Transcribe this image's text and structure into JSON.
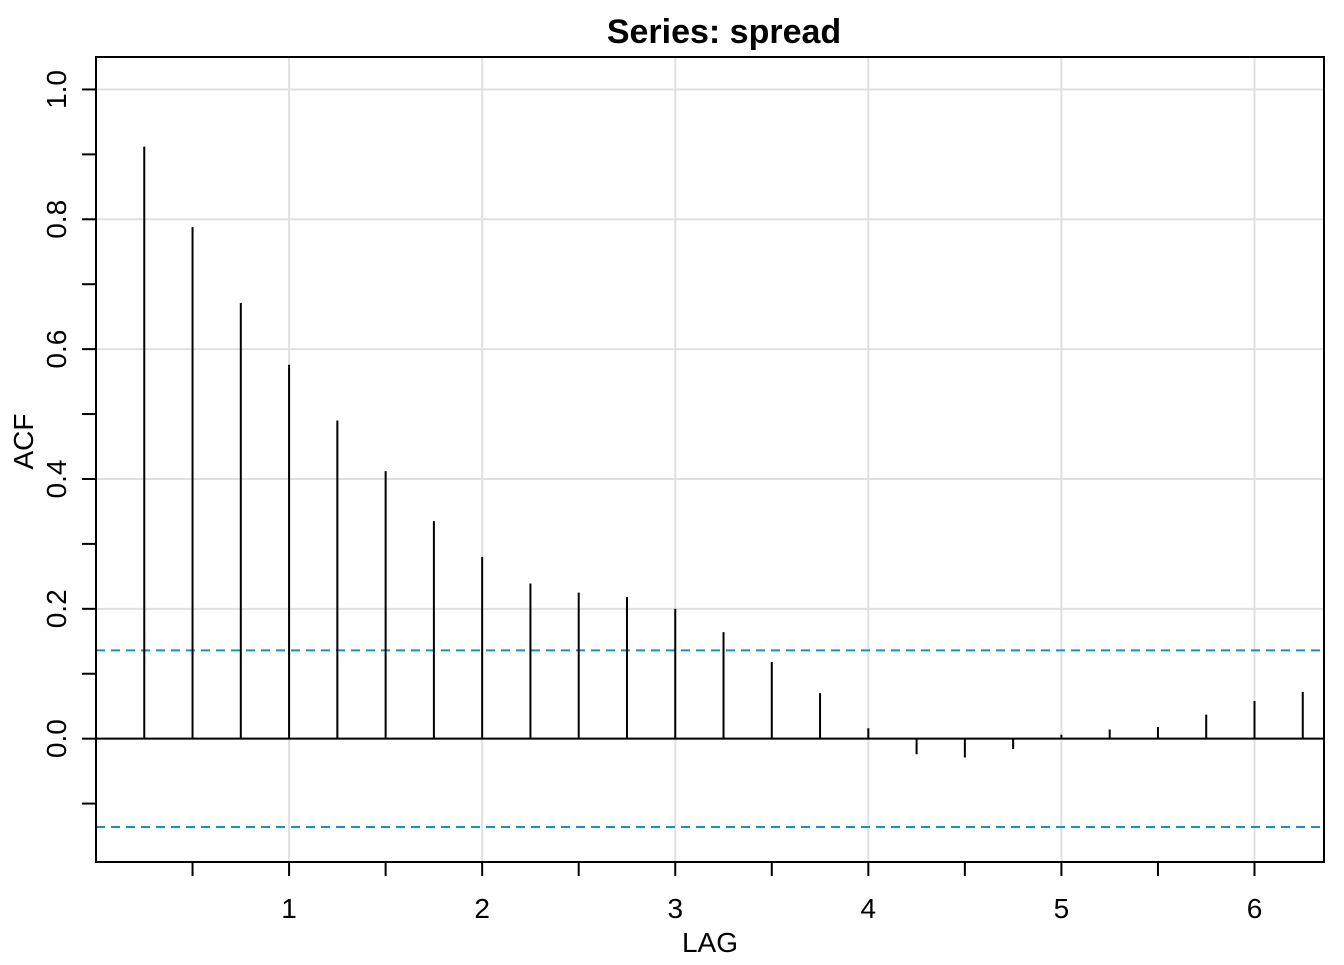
{
  "chart_data": {
    "type": "bar",
    "subtype": "acf-stem",
    "title": "Series:  spread",
    "xlabel": "LAG",
    "ylabel": "ACF",
    "xlim": [
      0.0,
      6.36
    ],
    "ylim": [
      -0.19,
      1.05
    ],
    "x_ticks": [
      1,
      2,
      3,
      4,
      5,
      6
    ],
    "x_tick_labels": [
      "1",
      "2",
      "3",
      "4",
      "5",
      "6"
    ],
    "x_minor_ticks": [
      0.5,
      1.5,
      2.5,
      3.5,
      4.5,
      5.5
    ],
    "y_ticks": [
      0.0,
      0.2,
      0.4,
      0.6,
      0.8,
      1.0
    ],
    "y_tick_labels": [
      "0.0",
      "0.2",
      "0.4",
      "0.6",
      "0.8",
      "1.0"
    ],
    "y_minor_ticks": [
      -0.1,
      0.1,
      0.3,
      0.5,
      0.7,
      0.9
    ],
    "grid": true,
    "grid_x": [
      1,
      2,
      3,
      4,
      5,
      6
    ],
    "grid_y": [
      0.0,
      0.2,
      0.4,
      0.6,
      0.8,
      1.0
    ],
    "confidence_bound": 0.136,
    "colors": {
      "stem": "#000000",
      "zero_line": "#000000",
      "confidence": "#1f8ad1",
      "grid": "#e0e0e0"
    },
    "series": [
      {
        "x": [
          0.25,
          0.5,
          0.75,
          1.0,
          1.25,
          1.5,
          1.75,
          2.0,
          2.25,
          2.5,
          2.75,
          3.0,
          3.25,
          3.5,
          3.75,
          4.0,
          4.25,
          4.5,
          4.75,
          5.0,
          5.25,
          5.5,
          5.75,
          6.0,
          6.25
        ],
        "values": [
          0.912,
          0.788,
          0.671,
          0.576,
          0.49,
          0.412,
          0.335,
          0.28,
          0.239,
          0.225,
          0.218,
          0.2,
          0.164,
          0.118,
          0.07,
          0.016,
          -0.024,
          -0.029,
          -0.016,
          0.006,
          0.014,
          0.018,
          0.037,
          0.058,
          0.072
        ]
      }
    ]
  }
}
